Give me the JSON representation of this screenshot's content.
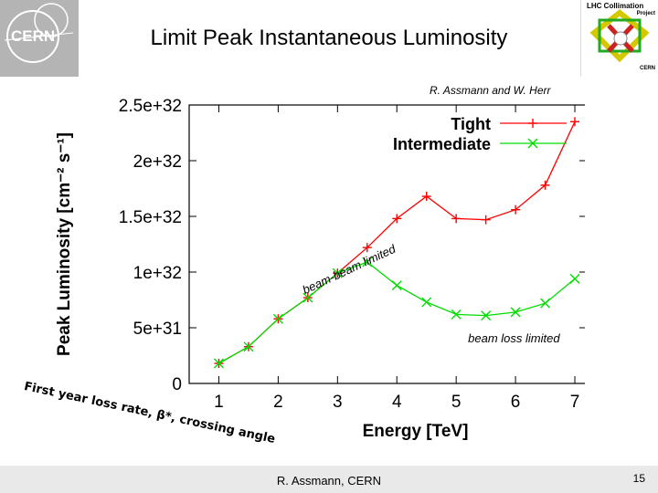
{
  "slide": {
    "title": "Limit Peak Instantaneous Luminosity",
    "attribution": "R. Assmann and W. Herr",
    "rotated_note": "First year loss rate, β*, crossing angle",
    "footer_author": "R. Assmann, CERN",
    "page_number": "15",
    "left_logo_text": "CERN",
    "right_logo": {
      "title": "LHC Collimation",
      "subtitle": "Project",
      "org": "CERN"
    }
  },
  "chart_data": {
    "type": "line",
    "xlabel": "Energy [TeV]",
    "ylabel": "Peak Luminosity [cm⁻² s⁻¹]",
    "xlim": [
      0.5,
      7.2
    ],
    "ylim": [
      0,
      2.5e+32
    ],
    "x_ticks": [
      1,
      2,
      3,
      4,
      5,
      6,
      7
    ],
    "x_tick_labels": [
      "1",
      "2",
      "3",
      "4",
      "5",
      "6",
      "7"
    ],
    "y_ticks": [
      0,
      5e+31,
      1e+32,
      1.5e+32,
      2e+32,
      2.5e+32
    ],
    "y_tick_labels": [
      "0",
      "5e+31",
      "1e+32",
      "1.5e+32",
      "2e+32",
      "2.5e+32"
    ],
    "series": [
      {
        "name": "Tight",
        "marker": "plus",
        "color": "#ff0000",
        "x": [
          1,
          1.5,
          2,
          2.5,
          3,
          3.5,
          4,
          4.5,
          5,
          5.5,
          6,
          6.5,
          7
        ],
        "y": [
          1.8e+31,
          3.3e+31,
          5.8e+31,
          7.7e+31,
          9.9e+31,
          1.22e+32,
          1.48e+32,
          1.68e+32,
          1.48e+32,
          1.47e+32,
          1.56e+32,
          1.78e+32,
          2.35e+32
        ]
      },
      {
        "name": "Intermediate",
        "marker": "cross",
        "color": "#00dd00",
        "x": [
          1,
          1.5,
          2,
          2.5,
          3,
          3.5,
          4,
          4.5,
          5,
          5.5,
          6,
          6.5,
          7
        ],
        "y": [
          1.8e+31,
          3.3e+31,
          5.8e+31,
          7.7e+31,
          9.9e+31,
          1.09e+32,
          8.8e+31,
          7.3e+31,
          6.2e+31,
          6.1e+31,
          6.4e+31,
          7.2e+31,
          9.4e+31
        ]
      }
    ],
    "annotations": [
      {
        "text": "beam-beam limited",
        "x": 2.45,
        "y": 8e+31,
        "rotate": -25
      },
      {
        "text": "beam loss limited",
        "x": 5.2,
        "y": 3.7e+31,
        "rotate": 0
      }
    ],
    "legend": "top-right",
    "grid": false
  }
}
